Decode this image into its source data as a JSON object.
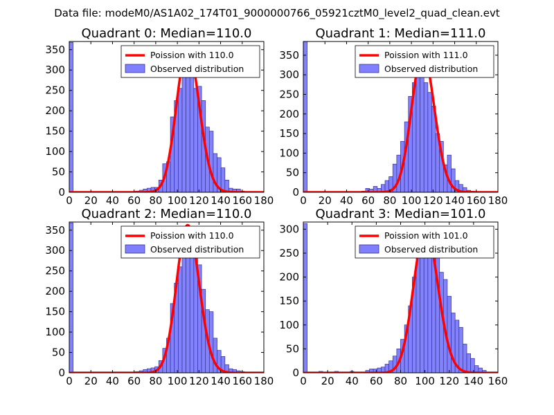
{
  "suptitle": "Data file: modeM0/AS1A02_174T01_9000000766_05921cztM0_level2_quad_clean.evt",
  "colors": {
    "bar_fill": "#8080ff",
    "bar_edge": "#33338a",
    "curve": "#ff0000"
  },
  "chart_data": [
    {
      "type": "bar",
      "title": "Quadrant 0: Median=110.0",
      "xlim": [
        0,
        180
      ],
      "ylim": [
        0,
        370
      ],
      "xticks": [
        0,
        20,
        40,
        60,
        80,
        100,
        120,
        140,
        160,
        180
      ],
      "yticks": [
        0,
        50,
        100,
        150,
        200,
        250,
        300,
        350
      ],
      "legend_position": "top-right",
      "series": [
        {
          "name": "Poission with 110.0",
          "kind": "line",
          "lambda": 110.0,
          "peak": 355
        },
        {
          "name": "Observed distribution",
          "kind": "histogram",
          "bin_width": 3.6,
          "x": [
            0,
            61.2,
            64.8,
            68.4,
            72,
            75.6,
            79.2,
            82.8,
            86.4,
            90,
            93.6,
            97.2,
            100.8,
            104.4,
            108,
            111.6,
            115.2,
            118.8,
            122.4,
            126,
            129.6,
            133.2,
            136.8,
            140.4,
            144,
            147.6,
            151.2,
            154.8,
            158.4
          ],
          "counts": [
            368,
            3,
            5,
            8,
            10,
            12,
            12,
            30,
            70,
            75,
            185,
            225,
            255,
            300,
            355,
            325,
            255,
            260,
            225,
            160,
            150,
            95,
            85,
            60,
            30,
            10,
            8,
            8,
            3
          ]
        }
      ]
    },
    {
      "type": "bar",
      "title": "Quadrant 1: Median=111.0",
      "xlim": [
        0,
        180
      ],
      "ylim": [
        0,
        385
      ],
      "xticks": [
        0,
        20,
        40,
        60,
        80,
        100,
        120,
        140,
        160,
        180
      ],
      "yticks": [
        0,
        50,
        100,
        150,
        200,
        250,
        300,
        350
      ],
      "legend_position": "top-right",
      "series": [
        {
          "name": "Poission with 111.0",
          "kind": "line",
          "lambda": 111.0,
          "peak": 355
        },
        {
          "name": "Observed distribution",
          "kind": "histogram",
          "bin_width": 3.6,
          "x": [
            0,
            54,
            57.6,
            61.2,
            64.8,
            68.4,
            72,
            75.6,
            79.2,
            82.8,
            86.4,
            90,
            93.6,
            97.2,
            100.8,
            104.4,
            108,
            111.6,
            115.2,
            118.8,
            122.4,
            126,
            129.6,
            133.2,
            136.8,
            140.4,
            144,
            147.6,
            151.2,
            154.8
          ],
          "counts": [
            385,
            3,
            10,
            8,
            15,
            10,
            20,
            30,
            40,
            72,
            95,
            130,
            180,
            245,
            280,
            315,
            310,
            280,
            255,
            220,
            150,
            130,
            70,
            95,
            60,
            30,
            20,
            12,
            5,
            3
          ]
        }
      ]
    },
    {
      "type": "bar",
      "title": "Quadrant 2: Median=110.0",
      "xlim": [
        0,
        180
      ],
      "ylim": [
        0,
        370
      ],
      "xticks": [
        0,
        20,
        40,
        60,
        80,
        100,
        120,
        140,
        160,
        180
      ],
      "yticks": [
        0,
        50,
        100,
        150,
        200,
        250,
        300,
        350
      ],
      "legend_position": "top-right",
      "series": [
        {
          "name": "Poission with 110.0",
          "kind": "line",
          "lambda": 110.0,
          "peak": 362
        },
        {
          "name": "Observed distribution",
          "kind": "histogram",
          "bin_width": 3.6,
          "x": [
            0,
            61.2,
            64.8,
            68.4,
            72,
            75.6,
            79.2,
            82.8,
            86.4,
            90,
            93.6,
            97.2,
            100.8,
            104.4,
            108,
            111.6,
            115.2,
            118.8,
            122.4,
            126,
            129.6,
            133.2,
            136.8,
            140.4,
            144,
            147.6,
            151.2,
            154.8,
            158.4
          ],
          "counts": [
            368,
            3,
            5,
            8,
            10,
            12,
            15,
            30,
            60,
            85,
            170,
            220,
            260,
            305,
            360,
            355,
            310,
            265,
            205,
            155,
            150,
            85,
            55,
            40,
            20,
            10,
            8,
            5,
            3
          ]
        }
      ]
    },
    {
      "type": "bar",
      "title": "Quadrant 3: Median=101.0",
      "xlim": [
        0,
        160
      ],
      "ylim": [
        0,
        315
      ],
      "xticks": [
        0,
        20,
        40,
        60,
        80,
        100,
        120,
        140,
        160
      ],
      "yticks": [
        0,
        50,
        100,
        150,
        200,
        250,
        300
      ],
      "legend_position": "top-right",
      "series": [
        {
          "name": "Poission with 101.0",
          "kind": "line",
          "lambda": 101.0,
          "peak": 300
        },
        {
          "name": "Observed distribution",
          "kind": "histogram",
          "bin_width": 3.2,
          "x": [
            0,
            12.8,
            25.6,
            38.4,
            51.2,
            54.4,
            57.6,
            60.8,
            64,
            67.2,
            70.4,
            73.6,
            76.8,
            80,
            83.2,
            86.4,
            89.6,
            92.8,
            96,
            99.2,
            102.4,
            105.6,
            108.8,
            112,
            115.2,
            118.4,
            121.6,
            124.8,
            128,
            131.2,
            134.4,
            137.6,
            140.8,
            144,
            147.2
          ],
          "counts": [
            312,
            3,
            3,
            3,
            5,
            8,
            8,
            10,
            12,
            18,
            25,
            35,
            50,
            70,
            100,
            140,
            200,
            245,
            265,
            300,
            295,
            285,
            255,
            210,
            195,
            160,
            125,
            110,
            95,
            60,
            40,
            30,
            15,
            10,
            5
          ]
        }
      ]
    }
  ]
}
